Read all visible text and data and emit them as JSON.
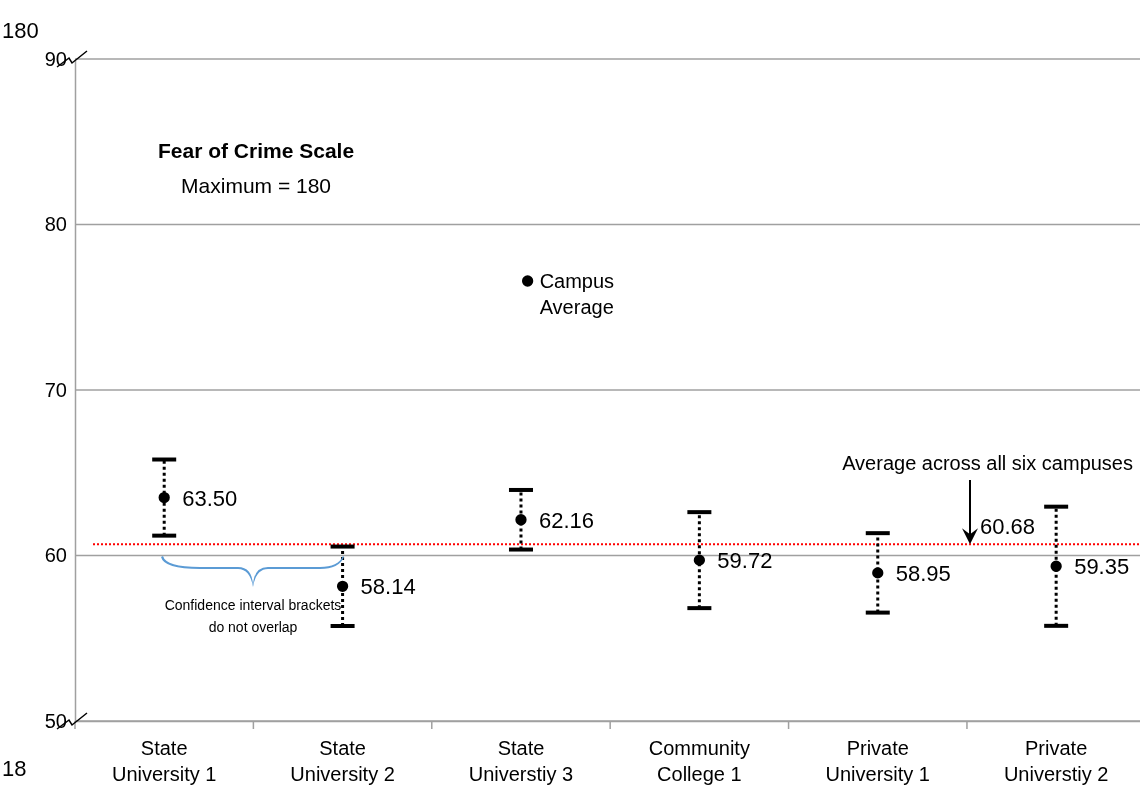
{
  "chart_data": {
    "type": "scatter",
    "title": "Fear of Crime Scale",
    "subtitle": "Maximum = 180",
    "categories": [
      "State University 1",
      "State University 2",
      "State Universtiy 3",
      "Community College 1",
      "Private University 1",
      "Private Universtiy 2"
    ],
    "series": [
      {
        "name": "Campus Average",
        "color": "#000000",
        "values": [
          63.5,
          58.14,
          62.16,
          59.72,
          58.95,
          59.35
        ],
        "errors": [
          2.3,
          2.4,
          1.8,
          2.9,
          2.4,
          3.6
        ],
        "value_labels": [
          "63.50",
          "58.14",
          "62.16",
          "59.72",
          "58.95",
          "59.35"
        ]
      }
    ],
    "ylim": [
      50,
      90
    ],
    "yticks": [
      50,
      60,
      70,
      80,
      90
    ],
    "grid": "y",
    "marker": "circle",
    "legend": "top",
    "ref_lines": [
      {
        "axis": "y",
        "value": 60.68,
        "label": "60.68",
        "color": "#ff0000",
        "line_style": "dotted"
      }
    ],
    "annotations": [
      "180",
      "18",
      "Confidence interval brackets do not overlap",
      "Average across all six campuses"
    ]
  }
}
